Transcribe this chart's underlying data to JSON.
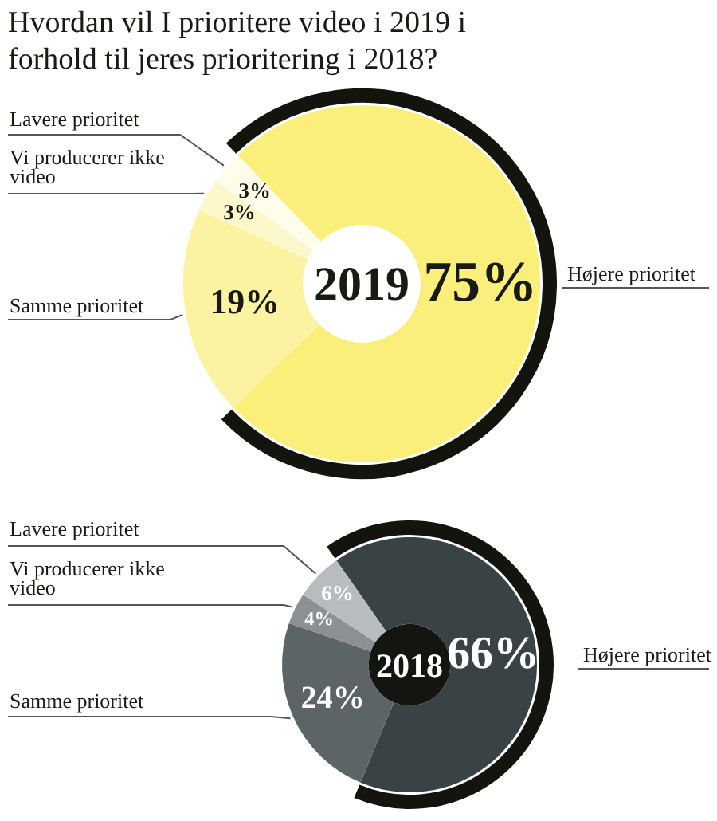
{
  "chart_data": [
    {
      "type": "donut",
      "title": "Hvordan vil I prioritere video i 2019 i forhold til jeres prioritering i 2018?",
      "categories": [
        "Højere prioritet",
        "Samme prioritet",
        "Vi producerer ikke video",
        "Lavere prioritet"
      ],
      "values": [
        75,
        19,
        3,
        3
      ],
      "colors": [
        "#f9ef7a",
        "#fbf3a2",
        "#fdf8cc",
        "#fefdeb"
      ],
      "value_labels": [
        "75%",
        "19%",
        "3%",
        "3%"
      ],
      "annotations": [
        "2019"
      ]
    },
    {
      "type": "donut",
      "categories": [
        "Højere prioritet",
        "Samme prioritet",
        "Vi producerer ikke video",
        "Lavere prioritet"
      ],
      "values": [
        66,
        24,
        4,
        6
      ],
      "colors": [
        "#394245",
        "#5c6468",
        "#8a9094",
        "#b8bcbe"
      ],
      "value_labels": [
        "66%",
        "24%",
        "4%",
        "6%"
      ],
      "annotations": [
        "2018"
      ]
    }
  ]
}
